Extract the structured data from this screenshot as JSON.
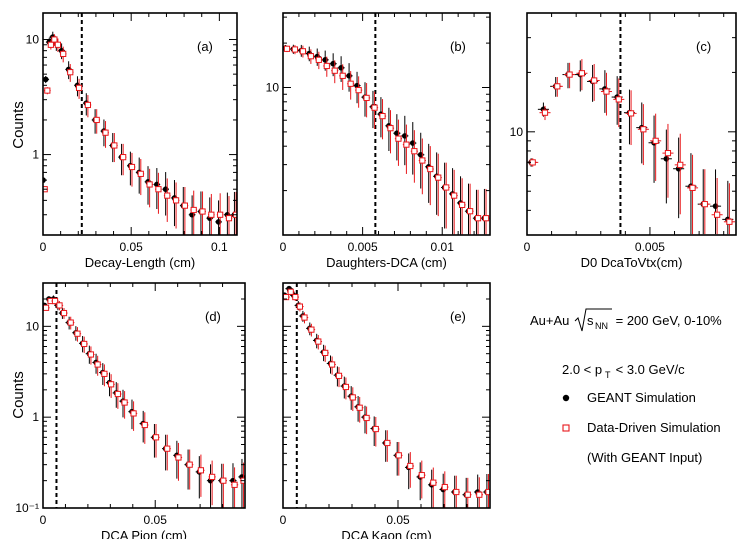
{
  "colors": {
    "geant": "#000000",
    "data_driven": "#e8171b",
    "axis": "#000000"
  },
  "legend_panel": {
    "line1_prefix": "Au+Au",
    "line1_sqrt": "s",
    "line1_sub": "NN",
    "line1_suffix": " = 200 GeV, 0-10%",
    "pt_prefix": "2.0 < p",
    "pt_sub": "T",
    "pt_suffix": " < 3.0 GeV/c",
    "entries": [
      {
        "label": "GEANT Simulation",
        "marker": "filled-circle"
      },
      {
        "label": "Data-Driven Simulation",
        "marker": "open-square"
      },
      {
        "label": "(With GEANT Input)",
        "marker": "none"
      }
    ]
  },
  "chart_data": [
    {
      "type": "scatter",
      "panel": "(a)",
      "ylabel": "Counts",
      "xlabel": "Decay-Length (cm)",
      "log_y": true,
      "xlim": [
        0,
        0.11
      ],
      "ylim": [
        0.2,
        17
      ],
      "cut_x": 0.022,
      "xticks": [
        {
          "v": 0,
          "l": "0"
        },
        {
          "v": 0.05,
          "l": "0.05"
        },
        {
          "v": 0.1,
          "l": "0.1"
        }
      ],
      "yticks": [
        {
          "v": 1,
          "l": "1"
        },
        {
          "v": 10,
          "l": "10"
        }
      ],
      "series": [
        {
          "marker": "filled-circle",
          "x": [
            0.0005,
            0.002,
            0.004,
            0.006,
            0.008,
            0.011,
            0.015,
            0.02,
            0.025,
            0.03,
            0.035,
            0.04,
            0.045,
            0.05,
            0.055,
            0.06,
            0.065,
            0.07,
            0.075,
            0.08,
            0.085,
            0.09,
            0.095,
            0.1,
            0.105,
            0.109
          ],
          "y": [
            0.6,
            4.5,
            9.5,
            10.5,
            9.2,
            8.0,
            5.5,
            4.0,
            2.8,
            2.0,
            1.6,
            1.2,
            0.95,
            0.8,
            0.7,
            0.58,
            0.55,
            0.5,
            0.42,
            0.36,
            0.3,
            0.32,
            0.28,
            0.26,
            0.3,
            0.3
          ]
        },
        {
          "marker": "open-square",
          "x": [
            0.0005,
            0.002,
            0.004,
            0.006,
            0.008,
            0.011,
            0.015,
            0.02,
            0.025,
            0.03,
            0.035,
            0.04,
            0.045,
            0.05,
            0.055,
            0.06,
            0.065,
            0.07,
            0.075,
            0.08,
            0.085,
            0.09,
            0.095,
            0.1,
            0.105,
            0.109
          ],
          "y": [
            0.5,
            3.6,
            9.0,
            10.0,
            9.0,
            7.5,
            5.2,
            3.8,
            2.7,
            2.0,
            1.55,
            1.2,
            0.95,
            0.78,
            0.68,
            0.55,
            0.5,
            0.44,
            0.4,
            0.36,
            0.33,
            0.32,
            0.3,
            0.3,
            0.28,
            0.3
          ]
        }
      ]
    },
    {
      "type": "scatter",
      "panel": "(b)",
      "ylabel": "",
      "xlabel": "Daughters-DCA (cm)",
      "log_y": true,
      "xlim": [
        0,
        0.013
      ],
      "ylim": [
        1.0,
        32
      ],
      "cut_x": 0.0058,
      "xticks": [
        {
          "v": 0,
          "l": "0"
        },
        {
          "v": 0.005,
          "l": "0.005"
        },
        {
          "v": 0.01,
          "l": "0.01"
        }
      ],
      "yticks": [
        {
          "v": 10,
          "l": "10"
        }
      ],
      "series": [
        {
          "marker": "filled-circle",
          "x": [
            0.0002,
            0.0007,
            0.0012,
            0.0017,
            0.0022,
            0.0027,
            0.0032,
            0.0037,
            0.0042,
            0.0047,
            0.0052,
            0.0057,
            0.0062,
            0.0067,
            0.0072,
            0.0077,
            0.0082,
            0.0087,
            0.0092,
            0.0097,
            0.0102,
            0.0107,
            0.0112,
            0.0117,
            0.0122,
            0.0127
          ],
          "y": [
            18.5,
            18.2,
            17.8,
            17,
            16.2,
            15.4,
            14.5,
            13.6,
            12.0,
            10.3,
            8.6,
            7.4,
            6.6,
            5.5,
            4.9,
            4.7,
            4.2,
            3.5,
            2.9,
            2.5,
            2.1,
            1.9,
            1.65,
            1.45,
            1.3,
            1.3
          ]
        },
        {
          "marker": "open-square",
          "x": [
            0.0002,
            0.0007,
            0.0012,
            0.0017,
            0.0022,
            0.0027,
            0.0032,
            0.0037,
            0.0042,
            0.0047,
            0.0052,
            0.0057,
            0.0062,
            0.0067,
            0.0072,
            0.0077,
            0.0082,
            0.0087,
            0.0092,
            0.0097,
            0.0102,
            0.0107,
            0.0112,
            0.0117,
            0.0122,
            0.0127
          ],
          "y": [
            18.3,
            18.1,
            17.6,
            16.3,
            15.4,
            14.0,
            13.0,
            12.0,
            10.6,
            9.6,
            8.5,
            7.3,
            6.4,
            5.3,
            4.5,
            4.1,
            3.7,
            3.2,
            2.8,
            2.45,
            2.1,
            1.85,
            1.6,
            1.45,
            1.3,
            1.3
          ]
        }
      ]
    },
    {
      "type": "scatter",
      "panel": "(c)",
      "ylabel": "",
      "xlabel": "D0 DcaToVtx(cm)",
      "log_y": true,
      "xlim": [
        0,
        0.0085
      ],
      "ylim": [
        3.0,
        40
      ],
      "cut_x": 0.0038,
      "xticks": [
        {
          "v": 0,
          "l": "0"
        },
        {
          "v": 0.005,
          "l": "0.005"
        }
      ],
      "yticks": [
        {
          "v": 10,
          "l": "10"
        }
      ],
      "series": [
        {
          "marker": "filled-circle",
          "x": [
            0.0002,
            0.0007,
            0.0012,
            0.0017,
            0.0022,
            0.0027,
            0.0032,
            0.0037,
            0.0042,
            0.0047,
            0.0052,
            0.0057,
            0.0062,
            0.0067,
            0.0072,
            0.0077,
            0.0082
          ],
          "y": [
            7.0,
            13.0,
            17.0,
            19.5,
            19.5,
            18.0,
            16.5,
            15.0,
            12.5,
            10.5,
            8.8,
            7.3,
            6.5,
            5.3,
            4.3,
            4.2,
            3.6
          ]
        },
        {
          "marker": "open-square",
          "x": [
            0.0002,
            0.0007,
            0.0012,
            0.0017,
            0.0022,
            0.0027,
            0.0032,
            0.0037,
            0.0042,
            0.0047,
            0.0052,
            0.0057,
            0.0062,
            0.0067,
            0.0072,
            0.0077,
            0.0082
          ],
          "y": [
            7.0,
            12.5,
            17.0,
            19.5,
            19.8,
            18.2,
            16.0,
            14.6,
            12.4,
            10.3,
            9.0,
            7.8,
            6.8,
            5.2,
            4.3,
            3.8,
            3.5
          ]
        }
      ]
    },
    {
      "type": "scatter",
      "panel": "(d)",
      "ylabel": "Counts",
      "xlabel": "DCA Pion (cm)",
      "log_y": true,
      "xlim": [
        0,
        0.09
      ],
      "ylim": [
        0.1,
        30
      ],
      "cut_x": 0.006,
      "xticks": [
        {
          "v": 0,
          "l": "0"
        },
        {
          "v": 0.05,
          "l": "0.05"
        }
      ],
      "yticks": [
        {
          "v": 0.1,
          "l": "10⁻¹"
        },
        {
          "v": 1,
          "l": "1"
        },
        {
          "v": 10,
          "l": "10"
        }
      ],
      "series": [
        {
          "marker": "filled-circle",
          "x": [
            0.001,
            0.003,
            0.005,
            0.007,
            0.009,
            0.012,
            0.015,
            0.018,
            0.021,
            0.024,
            0.027,
            0.03,
            0.033,
            0.036,
            0.04,
            0.045,
            0.05,
            0.055,
            0.06,
            0.065,
            0.07,
            0.075,
            0.08,
            0.085,
            0.089
          ],
          "y": [
            17,
            20,
            20,
            17,
            14,
            11,
            8.5,
            6.5,
            5.0,
            4.0,
            3.1,
            2.4,
            1.85,
            1.5,
            1.15,
            0.85,
            0.6,
            0.45,
            0.38,
            0.3,
            0.25,
            0.2,
            0.2,
            0.2,
            0.22
          ]
        },
        {
          "marker": "open-square",
          "x": [
            0.001,
            0.003,
            0.005,
            0.007,
            0.009,
            0.012,
            0.015,
            0.018,
            0.021,
            0.024,
            0.027,
            0.03,
            0.033,
            0.036,
            0.04,
            0.045,
            0.05,
            0.055,
            0.06,
            0.065,
            0.07,
            0.075,
            0.08,
            0.085,
            0.089
          ],
          "y": [
            16,
            19,
            19,
            17,
            14,
            11,
            8.3,
            6.4,
            4.9,
            3.8,
            3.0,
            2.3,
            1.8,
            1.45,
            1.1,
            0.82,
            0.6,
            0.45,
            0.36,
            0.3,
            0.26,
            0.22,
            0.2,
            0.18,
            0.2
          ]
        }
      ]
    },
    {
      "type": "scatter",
      "panel": "(e)",
      "ylabel": "",
      "xlabel": "DCA Kaon (cm)",
      "log_y": true,
      "xlim": [
        0,
        0.09
      ],
      "ylim": [
        0.1,
        30
      ],
      "cut_x": 0.006,
      "xticks": [
        {
          "v": 0,
          "l": "0"
        },
        {
          "v": 0.05,
          "l": "0.05"
        }
      ],
      "yticks": [],
      "series": [
        {
          "marker": "filled-circle",
          "x": [
            0.001,
            0.003,
            0.005,
            0.007,
            0.009,
            0.012,
            0.015,
            0.018,
            0.021,
            0.024,
            0.027,
            0.03,
            0.033,
            0.036,
            0.04,
            0.045,
            0.05,
            0.055,
            0.06,
            0.065,
            0.07,
            0.075,
            0.08,
            0.085,
            0.089
          ],
          "y": [
            22,
            26,
            22,
            17,
            13,
            9.5,
            7.0,
            5.2,
            3.9,
            2.9,
            2.2,
            1.7,
            1.3,
            1.0,
            0.75,
            0.52,
            0.38,
            0.28,
            0.22,
            0.18,
            0.16,
            0.15,
            0.14,
            0.15,
            0.15
          ]
        },
        {
          "marker": "open-square",
          "x": [
            0.001,
            0.003,
            0.005,
            0.007,
            0.009,
            0.012,
            0.015,
            0.018,
            0.021,
            0.024,
            0.027,
            0.03,
            0.033,
            0.036,
            0.04,
            0.045,
            0.05,
            0.055,
            0.06,
            0.065,
            0.07,
            0.075,
            0.08,
            0.085,
            0.089
          ],
          "y": [
            21,
            24,
            21,
            16.5,
            12.5,
            9.2,
            6.8,
            5.1,
            3.8,
            2.85,
            2.15,
            1.65,
            1.27,
            0.98,
            0.74,
            0.52,
            0.38,
            0.29,
            0.23,
            0.19,
            0.17,
            0.15,
            0.14,
            0.14,
            0.15
          ]
        }
      ]
    }
  ]
}
